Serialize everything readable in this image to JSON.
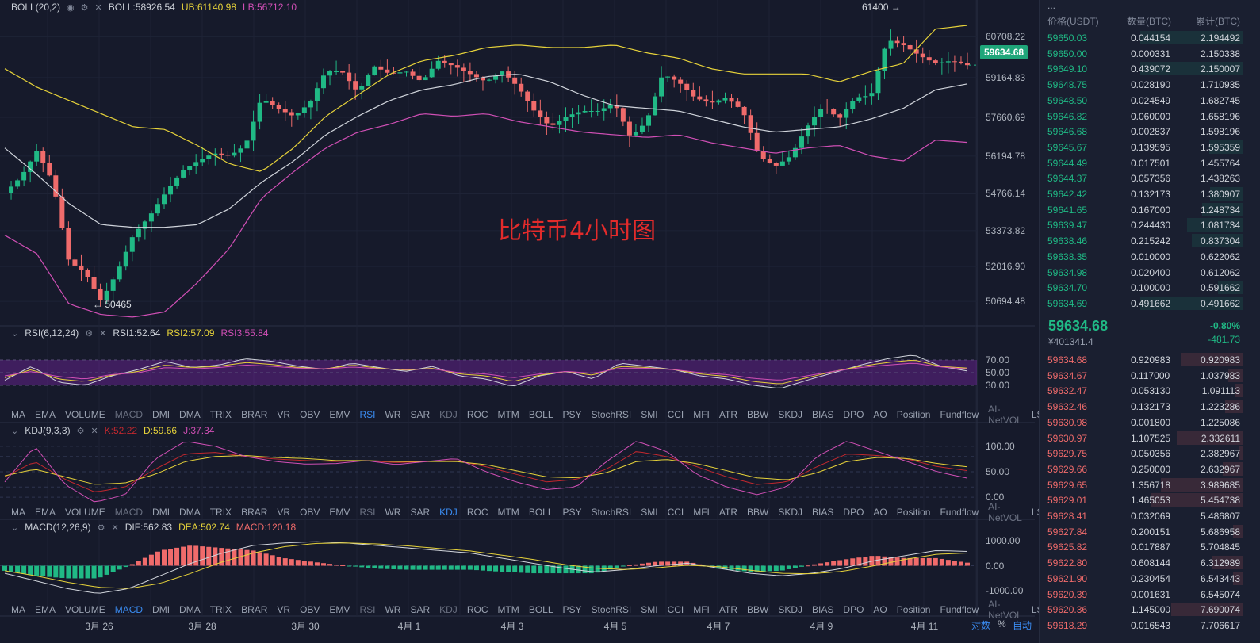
{
  "colors": {
    "up": "#20b985",
    "down": "#f06b6b",
    "boll_upper": "#e6d23a",
    "boll_mid": "#d0d4db",
    "boll_lower": "#d04fb5",
    "rsi1": "#d0d4db",
    "rsi2": "#e6d23a",
    "rsi3": "#d04fb5",
    "kdj_k": "#c2282e",
    "kdj_d": "#e6d23a",
    "kdj_j": "#d04fb5",
    "macd_dif": "#d0d4db",
    "macd_dea": "#e6d23a"
  },
  "boll_legend": {
    "name": "BOLL(20,2)",
    "boll": "BOLL:58926.54",
    "ub": "UB:61140.98",
    "lb": "LB:56712.10"
  },
  "rsi_legend": {
    "name": "RSI(6,12,24)",
    "rsi1": "RSI1:52.64",
    "rsi2": "RSI2:57.09",
    "rsi3": "RSI3:55.84"
  },
  "kdj_legend": {
    "name": "KDJ(9,3,3)",
    "k": "K:52.22",
    "d": "D:59.66",
    "j": "J:37.34"
  },
  "macd_legend": {
    "name": "MACD(12,26,9)",
    "dif": "DIF:562.83",
    "dea": "DEA:502.74",
    "macd": "MACD:120.18"
  },
  "indicator_tabs": [
    "MA",
    "EMA",
    "VOLUME",
    "MACD",
    "DMI",
    "DMA",
    "TRIX",
    "BRAR",
    "VR",
    "OBV",
    "EMV",
    "RSI",
    "WR",
    "SAR",
    "KDJ",
    "ROC",
    "MTM",
    "BOLL",
    "PSY",
    "StochRSI",
    "SMI",
    "CCI",
    "MFI",
    "ATR",
    "BBW",
    "SKDJ",
    "BIAS",
    "DPO",
    "AO",
    "Position",
    "Fundflow",
    "AI-NetVOL",
    "LSUR"
  ],
  "tab_state_rsi": {
    "active": "RSI",
    "dim": [
      "MACD",
      "KDJ",
      "AI-NetVOL"
    ]
  },
  "tab_state_kdj": {
    "active": "KDJ",
    "dim": [
      "MACD",
      "RSI",
      "AI-NetVOL"
    ]
  },
  "tab_state_macd": {
    "active": "MACD",
    "dim": [
      "RSI",
      "KDJ",
      "AI-NetVOL"
    ]
  },
  "watermark": "比特币4小时图",
  "current_price_tag": "59634.68",
  "high_annotation": "61400 →",
  "low_annotation": "← 50465",
  "bottom_controls": {
    "log": "对数",
    "pct": "%",
    "auto": "自动"
  },
  "chart_data": [
    {
      "type": "candlestick",
      "title": "BOLL(20,2)",
      "ylim": [
        49800,
        61800
      ],
      "yticks": [
        "60708.22",
        "59164.83",
        "57660.69",
        "56194.78",
        "54766.14",
        "53373.82",
        "52016.90",
        "50694.48"
      ],
      "ytick_values": [
        60708.22,
        59164.83,
        57660.69,
        56194.78,
        54766.14,
        53373.82,
        52016.9,
        50694.48
      ],
      "x_date_labels": [
        "3月 26",
        "3月 28",
        "3月 30",
        "4月 1",
        "4月 3",
        "4月 5",
        "4月 7",
        "4月 9",
        "4月 11"
      ],
      "high": 61400,
      "low": 50465,
      "last": 59634.68
    },
    {
      "type": "line",
      "title": "RSI(6,12,24)",
      "ylim": [
        0,
        100
      ],
      "yticks": [
        "70.00",
        "50.00",
        "30.00"
      ],
      "series": [
        {
          "name": "RSI1",
          "last": 52.64
        },
        {
          "name": "RSI2",
          "last": 57.09
        },
        {
          "name": "RSI3",
          "last": 55.84
        }
      ]
    },
    {
      "type": "line",
      "title": "KDJ(9,3,3)",
      "yticks": [
        "100.00",
        "50.00",
        "0.00"
      ],
      "series": [
        {
          "name": "K",
          "last": 52.22
        },
        {
          "name": "D",
          "last": 59.66
        },
        {
          "name": "J",
          "last": 37.34
        }
      ]
    },
    {
      "type": "bar",
      "title": "MACD(12,26,9)",
      "yticks": [
        "1000.00",
        "0.00",
        "-1000.00"
      ],
      "series": [
        {
          "name": "DIF",
          "last": 562.83
        },
        {
          "name": "DEA",
          "last": 502.74
        },
        {
          "name": "MACD",
          "last": 120.18
        }
      ]
    }
  ],
  "orderbook": {
    "headers": [
      "价格(USDT)",
      "数量(BTC)",
      "累计(BTC)"
    ],
    "top_strip": "...",
    "bids_top": [
      {
        "p": "59650.03",
        "q": "0.044154",
        "t": "2.194492",
        "f": 1.0
      },
      {
        "p": "59650.00",
        "q": "0.000331",
        "t": "2.150338",
        "f": 0.0
      },
      {
        "p": "59649.10",
        "q": "0.439072",
        "t": "2.150007",
        "f": 1.0
      },
      {
        "p": "59648.75",
        "q": "0.028190",
        "t": "1.710935",
        "f": 0.0
      },
      {
        "p": "59648.50",
        "q": "0.024549",
        "t": "1.682745",
        "f": 0.0
      },
      {
        "p": "59646.82",
        "q": "0.060000",
        "t": "1.658196",
        "f": 0.0
      },
      {
        "p": "59646.68",
        "q": "0.002837",
        "t": "1.598196",
        "f": 0.0
      },
      {
        "p": "59645.67",
        "q": "0.139595",
        "t": "1.595359",
        "f": 0.33
      },
      {
        "p": "59644.49",
        "q": "0.017501",
        "t": "1.455764",
        "f": 0.0
      },
      {
        "p": "59644.37",
        "q": "0.057356",
        "t": "1.438263",
        "f": 0.0
      },
      {
        "p": "59642.42",
        "q": "0.132173",
        "t": "1.380907",
        "f": 0.32
      },
      {
        "p": "59641.65",
        "q": "0.167000",
        "t": "1.248734",
        "f": 0.4
      },
      {
        "p": "59639.47",
        "q": "0.244430",
        "t": "1.081734",
        "f": 0.55
      },
      {
        "p": "59638.46",
        "q": "0.215242",
        "t": "0.837304",
        "f": 0.5
      },
      {
        "p": "59638.35",
        "q": "0.010000",
        "t": "0.622062",
        "f": 0.0
      },
      {
        "p": "59634.98",
        "q": "0.020400",
        "t": "0.612062",
        "f": 0.0
      },
      {
        "p": "59634.70",
        "q": "0.100000",
        "t": "0.591662",
        "f": 0.25
      },
      {
        "p": "59634.69",
        "q": "0.491662",
        "t": "0.491662",
        "f": 1.0
      }
    ],
    "mid": {
      "price": "59634.68",
      "cny": "¥401341.4",
      "pct": "-0.80%",
      "chg": "-481.73"
    },
    "asks": [
      {
        "p": "59634.68",
        "q": "0.920983",
        "t": "0.920983",
        "f": 0.6
      },
      {
        "p": "59634.67",
        "q": "0.117000",
        "t": "1.037983",
        "f": 0.15
      },
      {
        "p": "59632.47",
        "q": "0.053130",
        "t": "1.091113",
        "f": 0.08
      },
      {
        "p": "59632.46",
        "q": "0.132173",
        "t": "1.223286",
        "f": 0.18
      },
      {
        "p": "59630.98",
        "q": "0.001800",
        "t": "1.225086",
        "f": 0.0
      },
      {
        "p": "59630.97",
        "q": "1.107525",
        "t": "2.332611",
        "f": 0.65
      },
      {
        "p": "59629.75",
        "q": "0.050356",
        "t": "2.382967",
        "f": 0.05
      },
      {
        "p": "59629.66",
        "q": "0.250000",
        "t": "2.632967",
        "f": 0.2
      },
      {
        "p": "59629.65",
        "q": "1.356718",
        "t": "3.989685",
        "f": 0.8
      },
      {
        "p": "59629.01",
        "q": "1.465053",
        "t": "5.454738",
        "f": 0.9
      },
      {
        "p": "59628.41",
        "q": "0.032069",
        "t": "5.486807",
        "f": 0.0
      },
      {
        "p": "59627.84",
        "q": "0.200151",
        "t": "5.686958",
        "f": 0.1
      },
      {
        "p": "59625.82",
        "q": "0.017887",
        "t": "5.704845",
        "f": 0.0
      },
      {
        "p": "59622.80",
        "q": "0.608144",
        "t": "6.312989",
        "f": 0.3
      },
      {
        "p": "59621.90",
        "q": "0.230454",
        "t": "6.543443",
        "f": 0.1
      },
      {
        "p": "59620.39",
        "q": "0.001631",
        "t": "6.545074",
        "f": 0.0
      },
      {
        "p": "59620.36",
        "q": "1.145000",
        "t": "7.690074",
        "f": 0.7
      },
      {
        "p": "59618.29",
        "q": "0.016543",
        "t": "7.706617",
        "f": 0.0
      }
    ]
  }
}
